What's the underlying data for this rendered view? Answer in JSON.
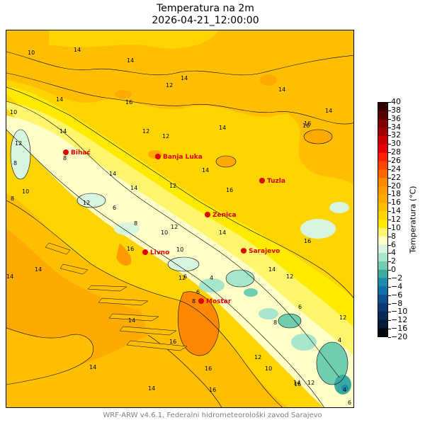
{
  "title": {
    "line1": "Temperatura na 2m",
    "line2": "2026-04-21_12:00:00"
  },
  "footer": "WRF-ARW v4.6.1, Federalni hidrometeorološki zavod Sarajevo",
  "colorbar": {
    "label": "Temperatura (°C)",
    "ticks": [
      "40",
      "38",
      "36",
      "34",
      "32",
      "30",
      "28",
      "26",
      "24",
      "22",
      "20",
      "18",
      "16",
      "14",
      "12",
      "10",
      "8",
      "6",
      "4",
      "2",
      "0",
      "−2",
      "−4",
      "−6",
      "−8",
      "−10",
      "−12",
      "−16",
      "−20"
    ],
    "colors": [
      "#330000",
      "#5a0000",
      "#800000",
      "#a00000",
      "#c80000",
      "#e60000",
      "#ff1e00",
      "#ff4400",
      "#ff6600",
      "#ff8800",
      "#ff9a00",
      "#ffaa00",
      "#ffbf00",
      "#ffd400",
      "#ffea00",
      "#fff66e",
      "#ffffc8",
      "#d8f5e0",
      "#a8e6cc",
      "#70cdb0",
      "#3aa9a0",
      "#1a8ca8",
      "#1070a8",
      "#0b5090",
      "#0a3a78",
      "#072a58",
      "#051a38",
      "#020810"
    ]
  },
  "cities": [
    {
      "name": "Bihać"
    },
    {
      "name": "Banja Luka"
    },
    {
      "name": "Tuzla"
    },
    {
      "name": "Zenica"
    },
    {
      "name": "Sarajevo"
    },
    {
      "name": "Livno"
    },
    {
      "name": "Mostar"
    }
  ],
  "contour_labels": [
    "10",
    "14",
    "14",
    "12",
    "14",
    "16",
    "14",
    "10",
    "12",
    "14",
    "16",
    "14",
    "14",
    "12",
    "8",
    "8",
    "10",
    "12",
    "14",
    "16",
    "12",
    "14",
    "16",
    "14",
    "6",
    "8",
    "10",
    "12",
    "14",
    "16",
    "4",
    "6",
    "8",
    "10",
    "12",
    "14",
    "16",
    "14",
    "16",
    "14",
    "12",
    "6",
    "8",
    "4",
    "12",
    "16",
    "14",
    "12",
    "16",
    "14",
    "10",
    "12",
    "14",
    "16",
    "14",
    "14",
    "12",
    "8",
    "6",
    "4",
    "6"
  ]
}
